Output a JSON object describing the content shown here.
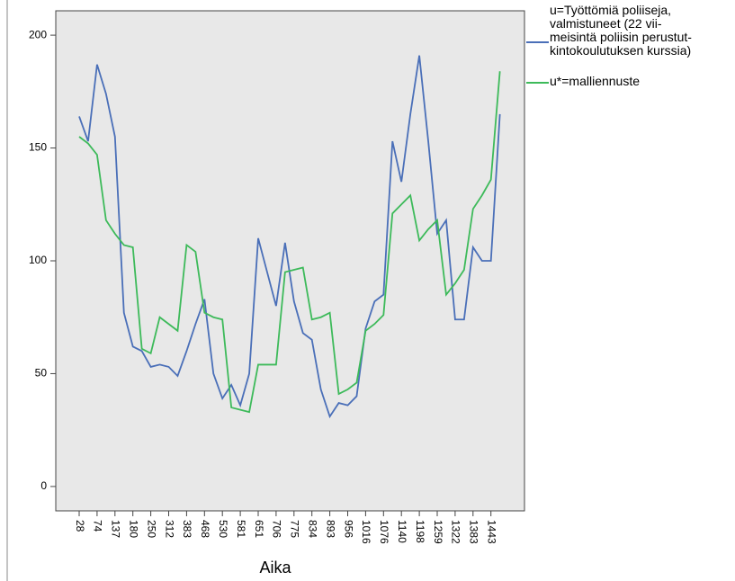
{
  "chart_data": {
    "type": "line",
    "xlabel": "Aika",
    "categories": [
      "28",
      null,
      "74",
      null,
      "137",
      null,
      "180",
      null,
      "250",
      null,
      "312",
      null,
      "383",
      null,
      "468",
      null,
      "530",
      null,
      "581",
      null,
      "651",
      null,
      "706",
      null,
      "775",
      null,
      "834",
      null,
      "893",
      null,
      "956",
      null,
      "1016",
      null,
      "1076",
      null,
      "1140",
      null,
      "1198",
      null,
      "1259",
      null,
      "1322",
      null,
      "1383",
      null,
      "1443",
      null
    ],
    "series": [
      {
        "name": "u=Työttömiä poliiseja,\nvalmistuneet (22 vii-\nmeisintä poliisin perustut-\nkintokoulutuksen kurssia)",
        "color": "#4a6fb8",
        "values": [
          164,
          153,
          187,
          174,
          155,
          77,
          62,
          60,
          53,
          54,
          53,
          49,
          60,
          72,
          83,
          50,
          39,
          45,
          36,
          50,
          110,
          95,
          80,
          108,
          82,
          68,
          65,
          43,
          31,
          37,
          36,
          40,
          70,
          82,
          85,
          153,
          135,
          165,
          191,
          153,
          112,
          118,
          74,
          74,
          106,
          100,
          100,
          165
        ]
      },
      {
        "name": "u*=malliennuste",
        "color": "#3dba5a",
        "values": [
          155,
          152,
          147,
          118,
          112,
          107,
          106,
          61,
          59,
          75,
          72,
          69,
          107,
          104,
          77,
          75,
          74,
          35,
          34,
          33,
          54,
          54,
          54,
          95,
          96,
          97,
          74,
          75,
          77,
          41,
          43,
          46,
          69,
          72,
          76,
          121,
          125,
          129,
          109,
          114,
          118,
          85,
          90,
          96,
          123,
          129,
          136,
          184
        ]
      }
    ],
    "ylim": [
      -10.8,
      210.8
    ],
    "yticks": [
      0,
      50,
      100,
      150,
      200
    ],
    "grid": false
  }
}
